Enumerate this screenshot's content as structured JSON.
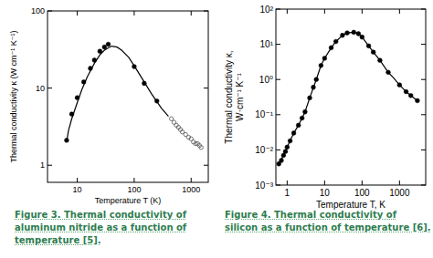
{
  "chart_data": [
    {
      "type": "line",
      "title": "Figure 3. Thermal conductivity of aluminum nitride as a function of temperature [5].",
      "x_label": "Temperature T (K)",
      "y_label": "Thermal conductivity κ (W cm⁻¹ K⁻¹)",
      "log": true,
      "grid": false,
      "xlim": [
        3,
        2000
      ],
      "ylim": [
        0.6,
        100
      ],
      "xticks": [
        10,
        100,
        1000
      ],
      "yticks": [
        1,
        10,
        100
      ],
      "series": [
        {
          "type": "line",
          "color": "#000000",
          "line_style": "solid",
          "marker": "none",
          "x": [
            6.5,
            7,
            8,
            10,
            12,
            15,
            20,
            25,
            30,
            40,
            50,
            60,
            80,
            100,
            150,
            200,
            300,
            400
          ],
          "values": [
            2,
            2.8,
            4,
            6.5,
            9.5,
            14,
            21,
            27,
            31,
            35,
            34,
            31,
            25,
            19.5,
            12,
            8.5,
            5.5,
            4.3
          ]
        },
        {
          "type": "scatter",
          "color": "#000000",
          "marker": "filled_circle",
          "x": [
            6.5,
            8,
            10,
            13,
            17,
            20,
            25,
            30,
            35,
            100,
            150,
            250
          ],
          "values": [
            2.1,
            4.6,
            7.5,
            12,
            18,
            23,
            30,
            34,
            37,
            19,
            11.5,
            6.8
          ]
        },
        {
          "type": "scatter",
          "color": "#555555",
          "marker": "open_circle",
          "x": [
            450,
            500,
            550,
            600,
            650,
            700,
            800,
            900,
            1000,
            1100,
            1200,
            1300,
            1400,
            1500
          ],
          "values": [
            4,
            3.6,
            3.3,
            3.1,
            2.9,
            2.7,
            2.5,
            2.3,
            2.2,
            2.0,
            1.9,
            1.9,
            1.8,
            1.7
          ]
        }
      ]
    },
    {
      "type": "line",
      "title": "Figure 4. Thermal conductivity of silicon as a function of temperature [6].",
      "x_label": "Temperature T, K",
      "y_label": [
        "Thermal conductivity κ,",
        "W·cm⁻¹ K⁻¹"
      ],
      "log": true,
      "grid": false,
      "xlim": [
        0.5,
        5000
      ],
      "ylim": [
        0.001,
        100
      ],
      "xticks": [
        1,
        10,
        100,
        1000
      ],
      "yticks": [
        {
          "value": 0.001,
          "label": "10⁻³"
        },
        {
          "value": 0.01,
          "label": "10⁻²"
        },
        {
          "value": 0.1,
          "label": "10⁻¹"
        },
        {
          "value": 1,
          "label": "10⁰"
        },
        {
          "value": 10,
          "label": "10¹"
        },
        {
          "value": 100,
          "label": "10²"
        }
      ],
      "series": [
        {
          "type": "line",
          "color": "#000000",
          "line_style": "solid",
          "marker": "none",
          "x": [
            0.6,
            0.8,
            1,
            1.5,
            2,
            3,
            4,
            6,
            8,
            10,
            15,
            20,
            30,
            40,
            60,
            80,
            100,
            150,
            200,
            300,
            500,
            700,
            1000,
            1500,
            2000,
            3000
          ],
          "values": [
            0.004,
            0.007,
            0.012,
            0.03,
            0.05,
            0.12,
            0.3,
            1,
            2.5,
            4,
            8,
            12,
            18,
            21,
            22,
            20,
            16,
            9,
            6,
            3.5,
            1.6,
            1.1,
            0.7,
            0.45,
            0.35,
            0.25
          ]
        },
        {
          "type": "scatter",
          "color": "#000000",
          "marker": "filled_circle",
          "x": [
            0.6,
            0.7,
            0.8,
            0.9,
            1,
            1.2,
            1.5,
            2,
            2.5,
            3,
            4,
            5,
            6,
            8,
            10,
            15,
            20,
            30,
            40,
            60,
            80,
            100,
            150,
            200,
            300,
            500,
            1000,
            1500,
            2000,
            3000
          ],
          "values": [
            0.004,
            0.005,
            0.007,
            0.009,
            0.012,
            0.018,
            0.03,
            0.05,
            0.08,
            0.12,
            0.3,
            0.6,
            1,
            2.5,
            4,
            8,
            12,
            18,
            21,
            22,
            20,
            16,
            9,
            6,
            3.5,
            1.6,
            0.7,
            0.45,
            0.35,
            0.25
          ]
        }
      ]
    }
  ]
}
